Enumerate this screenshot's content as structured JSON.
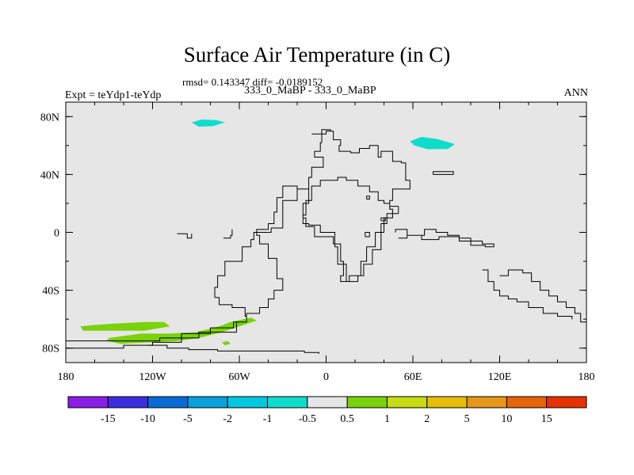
{
  "chart_data": {
    "type": "heatmap",
    "title": "Surface Air Temperature (in C)",
    "stats_line": "rmsd= 0.143347 diff= -0.0189152",
    "left_label": "Expt = teYdp1-teYdp",
    "center_label": "333_0_MaBP - 333_0_MaBP",
    "right_label": "ANN",
    "x_ticks": [
      {
        "lon": -180,
        "label": "180"
      },
      {
        "lon": -120,
        "label": "120W"
      },
      {
        "lon": -60,
        "label": "60W"
      },
      {
        "lon": 0,
        "label": "0"
      },
      {
        "lon": 60,
        "label": "60E"
      },
      {
        "lon": 120,
        "label": "120E"
      },
      {
        "lon": 180,
        "label": "180"
      }
    ],
    "y_ticks": [
      {
        "lat": 80,
        "label": "80N"
      },
      {
        "lat": 40,
        "label": "40N"
      },
      {
        "lat": 0,
        "label": "0"
      },
      {
        "lat": -40,
        "label": "40S"
      },
      {
        "lat": -80,
        "label": "80S"
      }
    ],
    "xlim": [
      -180,
      180
    ],
    "ylim": [
      -90,
      90
    ],
    "colorbar": {
      "colors": [
        "#8a1ee6",
        "#3c2ee0",
        "#0a6ad6",
        "#0aa0dc",
        "#00c8e0",
        "#10dccc",
        "#e6e6e6",
        "#7ad20a",
        "#c8dc14",
        "#e6be0a",
        "#e6961a",
        "#e6640a",
        "#e63200"
      ],
      "labels": [
        "-15",
        "-10",
        "-5",
        "-2",
        "-1",
        "-0.5",
        "0.5",
        "1",
        "2",
        "5",
        "10",
        "15"
      ]
    },
    "anomalies": [
      {
        "name": "cyan-patch-arctic-west",
        "color": "#10dccc",
        "pts": [
          [
            -93,
            76
          ],
          [
            -86,
            78
          ],
          [
            -76,
            77.5
          ],
          [
            -70,
            76
          ],
          [
            -78,
            73.5
          ],
          [
            -88,
            73
          ]
        ]
      },
      {
        "name": "cyan-patch-arctic-east",
        "color": "#10dccc",
        "pts": [
          [
            58,
            63
          ],
          [
            66,
            66
          ],
          [
            77,
            64.5
          ],
          [
            89,
            61
          ],
          [
            84,
            57.5
          ],
          [
            70,
            57.5
          ],
          [
            61,
            60
          ]
        ]
      },
      {
        "name": "green-patch-south-1",
        "color": "#7ad20a",
        "pts": [
          [
            -170,
            -65
          ],
          [
            -160,
            -64
          ],
          [
            -145,
            -63
          ],
          [
            -125,
            -62
          ],
          [
            -112,
            -62
          ],
          [
            -108,
            -65
          ],
          [
            -126,
            -68
          ],
          [
            -150,
            -68
          ],
          [
            -168,
            -68
          ]
        ]
      },
      {
        "name": "green-patch-south-2",
        "color": "#7ad20a",
        "pts": [
          [
            -150,
            -73
          ],
          [
            -128,
            -70
          ],
          [
            -108,
            -70
          ],
          [
            -90,
            -69
          ],
          [
            -74,
            -65
          ],
          [
            -66,
            -62
          ],
          [
            -52,
            -59
          ],
          [
            -48,
            -61
          ],
          [
            -60,
            -65
          ],
          [
            -72,
            -69
          ],
          [
            -88,
            -73
          ],
          [
            -102,
            -75
          ],
          [
            -120,
            -76
          ],
          [
            -142,
            -77
          ],
          [
            -152,
            -75
          ]
        ]
      },
      {
        "name": "green-patch-south-3",
        "color": "#7ad20a",
        "pts": [
          [
            -72,
            -76
          ],
          [
            -68,
            -75
          ],
          [
            -66,
            -77
          ],
          [
            -70,
            -78
          ]
        ]
      }
    ],
    "coastlines": [
      [
        [
          -180,
          -75
        ],
        [
          -118,
          -75
        ],
        [
          -115,
          -73
        ],
        [
          -96,
          -73
        ],
        [
          -88,
          -69
        ],
        [
          -70,
          -69
        ],
        [
          -62,
          -62
        ],
        [
          -55,
          -58
        ],
        [
          -56,
          -52
        ],
        [
          -65,
          -50
        ],
        [
          -74,
          -45
        ],
        [
          -77,
          -38
        ],
        [
          -75,
          -30
        ],
        [
          -70,
          -20
        ],
        [
          -58,
          -10
        ],
        [
          -52,
          -5
        ],
        [
          -50,
          0
        ],
        [
          -38,
          3
        ],
        [
          -30,
          6
        ],
        [
          -30,
          22
        ],
        [
          -20,
          30
        ],
        [
          -12,
          38
        ],
        [
          -10,
          45
        ],
        [
          -2,
          52
        ],
        [
          -8,
          56
        ],
        [
          -4,
          62
        ],
        [
          -3,
          68
        ],
        [
          0,
          70
        ],
        [
          5,
          64
        ],
        [
          10,
          60
        ],
        [
          9,
          56
        ],
        [
          17,
          55
        ],
        [
          23,
          58
        ],
        [
          30,
          60
        ],
        [
          36,
          52
        ],
        [
          38,
          56
        ],
        [
          46,
          54
        ],
        [
          46,
          49
        ],
        [
          52,
          48
        ],
        [
          55,
          36
        ],
        [
          58,
          30
        ],
        [
          52,
          30
        ],
        [
          46,
          22
        ],
        [
          44,
          18
        ],
        [
          50,
          13
        ],
        [
          42,
          6
        ],
        [
          38,
          0
        ],
        [
          34,
          -10
        ],
        [
          28,
          -20
        ],
        [
          24,
          -30
        ],
        [
          16,
          -34
        ],
        [
          14,
          -22
        ],
        [
          8,
          -10
        ],
        [
          6,
          0
        ],
        [
          -4,
          5
        ],
        [
          -12,
          6
        ],
        [
          -16,
          12
        ],
        [
          -14,
          22
        ],
        [
          -10,
          32
        ],
        [
          -4,
          36
        ],
        [
          8,
          38
        ],
        [
          14,
          36
        ],
        [
          22,
          32
        ],
        [
          30,
          28
        ],
        [
          36,
          22
        ],
        [
          40,
          20
        ],
        [
          44,
          16
        ],
        [
          46,
          10
        ],
        [
          40,
          0
        ],
        [
          38,
          -12
        ],
        [
          32,
          -22
        ],
        [
          26,
          -30
        ],
        [
          22,
          -34
        ],
        [
          14,
          -34
        ],
        [
          10,
          -30
        ],
        [
          12,
          -20
        ],
        [
          10,
          -8
        ],
        [
          5,
          -3
        ],
        [
          -8,
          4
        ],
        [
          -14,
          10
        ],
        [
          -16,
          20
        ],
        [
          -12,
          30
        ],
        [
          -20,
          32
        ],
        [
          -30,
          24
        ],
        [
          -34,
          14
        ],
        [
          -36,
          6
        ],
        [
          -40,
          2
        ],
        [
          -48,
          -2
        ],
        [
          -46,
          -8
        ],
        [
          -40,
          -18
        ],
        [
          -34,
          -22
        ],
        [
          -34,
          -32
        ],
        [
          -30,
          -40
        ],
        [
          -36,
          -46
        ],
        [
          -40,
          -52
        ],
        [
          -46,
          -56
        ],
        [
          -55,
          -62
        ],
        [
          -64,
          -66
        ],
        [
          -80,
          -70
        ],
        [
          -100,
          -76
        ],
        [
          -120,
          -78
        ],
        [
          -140,
          -80
        ],
        [
          -180,
          -80
        ]
      ],
      [
        [
          -123,
          -78
        ],
        [
          -110,
          -80
        ],
        [
          -95,
          -81
        ],
        [
          -75,
          -82
        ],
        [
          -50,
          -82
        ],
        [
          -30,
          -82
        ],
        [
          -15,
          -83
        ],
        [
          -5,
          -84
        ]
      ],
      [
        [
          50,
          -4
        ],
        [
          56,
          -2
        ],
        [
          66,
          -5
        ],
        [
          78,
          -3
        ],
        [
          92,
          -6
        ],
        [
          100,
          -9
        ],
        [
          110,
          -10
        ],
        [
          116,
          -8
        ],
        [
          108,
          -6
        ],
        [
          100,
          -4
        ],
        [
          92,
          -2
        ],
        [
          84,
          0
        ],
        [
          76,
          2
        ],
        [
          68,
          -2
        ],
        [
          56,
          2
        ],
        [
          48,
          0
        ]
      ],
      [
        [
          120,
          -30
        ],
        [
          126,
          -26
        ],
        [
          136,
          -28
        ],
        [
          142,
          -34
        ],
        [
          148,
          -40
        ],
        [
          154,
          -44
        ],
        [
          160,
          -48
        ],
        [
          166,
          -52
        ],
        [
          172,
          -56
        ],
        [
          176,
          -62
        ],
        [
          180,
          -68
        ]
      ],
      [
        [
          108,
          -26
        ],
        [
          112,
          -34
        ],
        [
          116,
          -40
        ],
        [
          120,
          -44
        ],
        [
          126,
          -46
        ],
        [
          132,
          -48
        ],
        [
          140,
          -52
        ],
        [
          150,
          -56
        ],
        [
          160,
          -58
        ],
        [
          170,
          -60
        ]
      ],
      [
        [
          -103,
          -1
        ],
        [
          -96,
          -4
        ],
        [
          -93,
          -1
        ]
      ],
      [
        [
          -71,
          -4
        ],
        [
          -66,
          -2
        ],
        [
          -65,
          2
        ]
      ],
      [
        [
          -10,
          68
        ],
        [
          -3,
          71
        ],
        [
          3,
          70
        ]
      ],
      [
        [
          74,
          40
        ],
        [
          88,
          40
        ],
        [
          88,
          42
        ],
        [
          74,
          42
        ],
        [
          74,
          40
        ]
      ],
      [
        [
          28,
          23
        ],
        [
          30,
          23
        ],
        [
          30,
          25
        ],
        [
          28,
          25
        ],
        [
          28,
          23
        ]
      ],
      [
        [
          38,
          8
        ],
        [
          41,
          8
        ],
        [
          41,
          10
        ],
        [
          38,
          10
        ],
        [
          38,
          8
        ]
      ],
      [
        [
          27,
          -3
        ],
        [
          30,
          -3
        ],
        [
          30,
          0
        ],
        [
          27,
          0
        ],
        [
          27,
          -3
        ]
      ]
    ]
  }
}
